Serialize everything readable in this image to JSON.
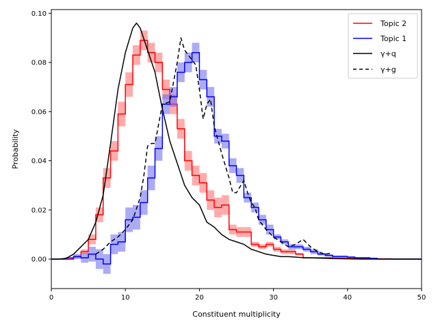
{
  "chart_data": {
    "type": "line",
    "xlabel": "Constituent multiplicity",
    "ylabel": "Probability",
    "xlim": [
      0,
      50
    ],
    "ylim": [
      -0.012,
      0.1015
    ],
    "xticks": [
      0,
      10,
      20,
      30,
      40,
      50
    ],
    "xtick_labels": [
      "0",
      "10",
      "20",
      "30",
      "40",
      "50"
    ],
    "yticks": [
      0.0,
      0.02,
      0.04,
      0.06,
      0.08,
      0.1
    ],
    "ytick_labels": [
      "0.00",
      "0.02",
      "0.04",
      "0.06",
      "0.08",
      "0.10"
    ],
    "grid": false,
    "legend_position": "top-right",
    "series": [
      {
        "name": "Topic 2",
        "kind": "step-band",
        "color": "#ff0000",
        "band_color": "#ff6666",
        "x_start": 0,
        "bin_width": 1,
        "values": [
          0.0,
          0.0,
          0.0005,
          0.001,
          0.003,
          0.008,
          0.018,
          0.033,
          0.044,
          0.059,
          0.071,
          0.083,
          0.089,
          0.084,
          0.08,
          0.069,
          0.063,
          0.053,
          0.04,
          0.034,
          0.031,
          0.024,
          0.021,
          0.022,
          0.012,
          0.011,
          0.011,
          0.006,
          0.005,
          0.006,
          0.004,
          0.003,
          0.003,
          0.002,
          0.0005,
          0.0005,
          0.0005,
          0.0005,
          0.0003,
          0.0003,
          0.0003,
          0.0002,
          0.0002,
          0.0002,
          0.0001,
          0.0001,
          0.0,
          0.0,
          0.0,
          0.0
        ],
        "errors": [
          0.0,
          0.0,
          0.0003,
          0.0005,
          0.001,
          0.002,
          0.003,
          0.004,
          0.004,
          0.005,
          0.005,
          0.004,
          0.004,
          0.004,
          0.004,
          0.004,
          0.004,
          0.004,
          0.004,
          0.004,
          0.004,
          0.004,
          0.004,
          0.004,
          0.002,
          0.002,
          0.002,
          0.001,
          0.001,
          0.001,
          0.001,
          0.001,
          0.001,
          0.0005,
          0.0003,
          0.0003,
          0.0003,
          0.0003,
          0.0002,
          0.0002,
          0.0002,
          0.0001,
          0.0001,
          0.0001,
          0.0001,
          0.0001,
          0.0,
          0.0,
          0.0,
          0.0
        ]
      },
      {
        "name": "Topic 1",
        "kind": "step-band",
        "color": "#0000ff",
        "band_color": "#6666ee",
        "x_start": 0,
        "bin_width": 1,
        "values": [
          0.0,
          0.0,
          0.0,
          0.001,
          0.0005,
          0.002,
          0.0,
          -0.002,
          0.006,
          0.007,
          0.016,
          0.017,
          0.023,
          0.033,
          0.045,
          0.063,
          0.066,
          0.076,
          0.08,
          0.084,
          0.073,
          0.066,
          0.05,
          0.048,
          0.038,
          0.034,
          0.025,
          0.021,
          0.016,
          0.012,
          0.009,
          0.007,
          0.005,
          0.005,
          0.004,
          0.003,
          0.002,
          0.0015,
          0.001,
          0.001,
          0.0008,
          0.0005,
          0.0005,
          0.0003,
          0.0,
          0.0,
          0.0,
          0.0,
          0.0,
          0.0
        ],
        "errors": [
          0.0,
          0.0,
          0.0,
          0.001,
          0.002,
          0.003,
          0.004,
          0.004,
          0.004,
          0.004,
          0.005,
          0.005,
          0.005,
          0.005,
          0.005,
          0.004,
          0.004,
          0.004,
          0.004,
          0.004,
          0.004,
          0.004,
          0.003,
          0.003,
          0.003,
          0.003,
          0.002,
          0.002,
          0.002,
          0.002,
          0.001,
          0.001,
          0.001,
          0.001,
          0.001,
          0.001,
          0.0005,
          0.0005,
          0.0005,
          0.0005,
          0.0003,
          0.0003,
          0.0003,
          0.0002,
          0.0,
          0.0,
          0.0,
          0.0,
          0.0,
          0.0
        ]
      },
      {
        "name": "γ+q",
        "kind": "line",
        "color": "#000000",
        "dash": "solid",
        "x": [
          0,
          1,
          2,
          3,
          4,
          5,
          6,
          7,
          8,
          9,
          10,
          11,
          11.5,
          12,
          13,
          14,
          15,
          16,
          17,
          18,
          19,
          20,
          21,
          22,
          23,
          24,
          25,
          26,
          27,
          28,
          29,
          30,
          31,
          32,
          33,
          34,
          35,
          36,
          37,
          38,
          40,
          42,
          45,
          50
        ],
        "y": [
          0.0,
          0.0,
          0.0003,
          0.002,
          0.005,
          0.008,
          0.015,
          0.026,
          0.047,
          0.069,
          0.084,
          0.094,
          0.096,
          0.094,
          0.085,
          0.076,
          0.061,
          0.048,
          0.039,
          0.03,
          0.025,
          0.022,
          0.015,
          0.013,
          0.01,
          0.008,
          0.007,
          0.006,
          0.004,
          0.003,
          0.002,
          0.0015,
          0.001,
          0.001,
          0.0008,
          0.0006,
          0.0005,
          0.0004,
          0.0003,
          0.0002,
          0.0001,
          0.0,
          0.0,
          0.0
        ]
      },
      {
        "name": "γ+g",
        "kind": "line",
        "color": "#000000",
        "dash": "dashed",
        "x": [
          6,
          7,
          8,
          9,
          10,
          11,
          12,
          12.5,
          13,
          13.5,
          14,
          15,
          16,
          17,
          17.5,
          18,
          19,
          19.5,
          20,
          20.5,
          21,
          21.5,
          22,
          23,
          24,
          24.5,
          25,
          26,
          26.5,
          27,
          27.5,
          28,
          29,
          30,
          31,
          32,
          33,
          34,
          35,
          36,
          37,
          38
        ],
        "y": [
          0.002,
          0.004,
          0.007,
          0.009,
          0.012,
          0.016,
          0.025,
          0.034,
          0.046,
          0.047,
          0.047,
          0.063,
          0.064,
          0.08,
          0.09,
          0.085,
          0.081,
          0.079,
          0.069,
          0.057,
          0.063,
          0.065,
          0.054,
          0.043,
          0.033,
          0.027,
          0.027,
          0.032,
          0.027,
          0.023,
          0.021,
          0.016,
          0.012,
          0.009,
          0.007,
          0.005,
          0.006,
          0.008,
          0.005,
          0.003,
          0.002,
          0.0025
        ]
      }
    ]
  }
}
